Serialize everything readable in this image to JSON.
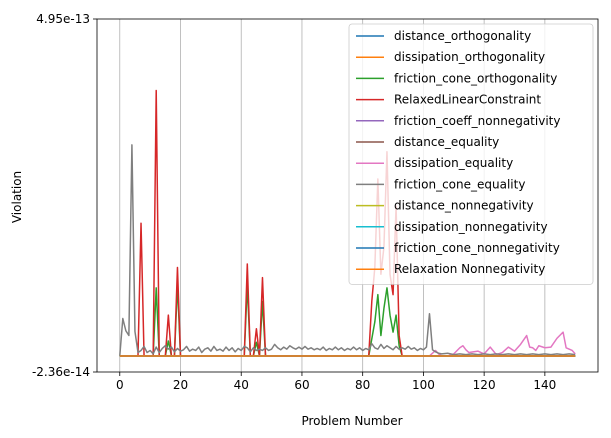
{
  "chart_data": {
    "type": "line",
    "title": "",
    "xlabel": "Problem Number",
    "ylabel": "Violation",
    "xlim": [
      -7.5,
      157.5
    ],
    "ylim": [
      -2.36e-14,
      4.95e-13
    ],
    "x_ticks": [
      0,
      20,
      40,
      60,
      80,
      100,
      120,
      140
    ],
    "y_ticks": [
      {
        "value": -2.36e-14,
        "label": "-2.36e-14"
      },
      {
        "value": 4.95e-13,
        "label": "4.95e-13"
      }
    ],
    "grid": "x-only",
    "legend_position": "top-right",
    "series": [
      {
        "name": "distance_orthogonality",
        "color": "#1f77b4",
        "points": [
          [
            0,
            0
          ],
          [
            150,
            0
          ]
        ]
      },
      {
        "name": "dissipation_orthogonality",
        "color": "#ff7f0e",
        "points": [
          [
            0,
            0
          ],
          [
            150,
            0
          ]
        ]
      },
      {
        "name": "friction_cone_orthogonality",
        "color": "#2ca02c",
        "points": [
          [
            0,
            0
          ],
          [
            11,
            0
          ],
          [
            12,
            1e-13
          ],
          [
            13,
            0
          ],
          [
            15,
            0
          ],
          [
            16,
            2.2e-14
          ],
          [
            17,
            0
          ],
          [
            18,
            0
          ],
          [
            19,
            1.05e-13
          ],
          [
            20,
            0
          ],
          [
            41,
            0
          ],
          [
            42,
            1.05e-13
          ],
          [
            43,
            0
          ],
          [
            44,
            0
          ],
          [
            45,
            2e-14
          ],
          [
            46,
            0
          ],
          [
            47,
            8e-14
          ],
          [
            48,
            0
          ],
          [
            82,
            0
          ],
          [
            83,
            2.5e-14
          ],
          [
            84,
            5e-14
          ],
          [
            85,
            9e-14
          ],
          [
            86,
            3e-14
          ],
          [
            87,
            7e-14
          ],
          [
            88,
            1e-13
          ],
          [
            89,
            6e-14
          ],
          [
            90,
            3.5e-14
          ],
          [
            91,
            6e-14
          ],
          [
            92,
            1.5e-14
          ],
          [
            93,
            0
          ],
          [
            150,
            0
          ]
        ]
      },
      {
        "name": "RelaxedLinearConstraint",
        "color": "#d62728",
        "points": [
          [
            0,
            0
          ],
          [
            6,
            0
          ],
          [
            7,
            1.95e-13
          ],
          [
            8,
            0
          ],
          [
            11,
            0
          ],
          [
            12,
            3.9e-13
          ],
          [
            13,
            0
          ],
          [
            15,
            0
          ],
          [
            16,
            6e-14
          ],
          [
            17,
            0
          ],
          [
            18,
            0
          ],
          [
            19,
            1.3e-13
          ],
          [
            20,
            0
          ],
          [
            41,
            0
          ],
          [
            42,
            1.35e-13
          ],
          [
            43,
            0
          ],
          [
            44,
            0
          ],
          [
            45,
            4e-14
          ],
          [
            46,
            0
          ],
          [
            47,
            1.15e-13
          ],
          [
            48,
            0
          ],
          [
            82,
            0
          ],
          [
            83,
            8e-14
          ],
          [
            84,
            1.3e-13
          ],
          [
            85,
            2.6e-13
          ],
          [
            86,
            1.2e-13
          ],
          [
            87,
            1.6e-13
          ],
          [
            88,
            3e-13
          ],
          [
            89,
            1.2e-13
          ],
          [
            90,
            9e-14
          ],
          [
            91,
            2.2e-13
          ],
          [
            92,
            3e-14
          ],
          [
            93,
            0
          ],
          [
            150,
            0
          ]
        ]
      },
      {
        "name": "friction_coeff_nonnegativity",
        "color": "#9467bd",
        "points": [
          [
            0,
            0
          ],
          [
            150,
            0
          ]
        ]
      },
      {
        "name": "distance_equality",
        "color": "#8c564b",
        "points": [
          [
            0,
            0
          ],
          [
            150,
            0
          ]
        ]
      },
      {
        "name": "dissipation_equality",
        "color": "#e377c2",
        "points": [
          [
            0,
            0
          ],
          [
            102,
            0
          ],
          [
            103,
            4e-15
          ],
          [
            104,
            8e-15
          ],
          [
            105,
            3e-15
          ],
          [
            106,
            0
          ],
          [
            108,
            0
          ],
          [
            110,
            3e-15
          ],
          [
            112,
            1.2e-14
          ],
          [
            113,
            1.5e-14
          ],
          [
            114,
            9e-15
          ],
          [
            115,
            5e-15
          ],
          [
            118,
            7e-15
          ],
          [
            120,
            3e-15
          ],
          [
            122,
            1.3e-14
          ],
          [
            124,
            2e-15
          ],
          [
            126,
            5e-15
          ],
          [
            128,
            1.3e-14
          ],
          [
            130,
            7e-15
          ],
          [
            132,
            1.7e-14
          ],
          [
            134,
            3e-14
          ],
          [
            135,
            1.3e-14
          ],
          [
            136,
            1.2e-14
          ],
          [
            137,
            8e-15
          ],
          [
            138,
            1.5e-14
          ],
          [
            140,
            1.2e-14
          ],
          [
            142,
            1.3e-14
          ],
          [
            144,
            2.6e-14
          ],
          [
            146,
            3.5e-14
          ],
          [
            147,
            1.2e-14
          ],
          [
            149,
            8e-15
          ],
          [
            150,
            3e-15
          ]
        ]
      },
      {
        "name": "friction_cone_equality",
        "color": "#7f7f7f",
        "points": [
          [
            0,
            0
          ],
          [
            1,
            5.5e-14
          ],
          [
            2,
            3.7e-14
          ],
          [
            3,
            3e-14
          ],
          [
            4,
            3.1e-13
          ],
          [
            5,
            3.6e-14
          ],
          [
            6,
            5e-15
          ],
          [
            7,
            8e-15
          ],
          [
            8,
            1.4e-14
          ],
          [
            9,
            5e-15
          ],
          [
            10,
            8e-15
          ],
          [
            11,
            3e-15
          ],
          [
            12,
            1.3e-14
          ],
          [
            13,
            5e-15
          ],
          [
            14,
            1.1e-14
          ],
          [
            15,
            1.5e-14
          ],
          [
            16,
            1e-14
          ],
          [
            17,
            1.3e-14
          ],
          [
            18,
            6e-15
          ],
          [
            19,
            1.1e-14
          ],
          [
            20,
            7e-15
          ],
          [
            21,
            9e-15
          ],
          [
            22,
            1.4e-14
          ],
          [
            23,
            7e-15
          ],
          [
            24,
            1e-14
          ],
          [
            25,
            8e-15
          ],
          [
            26,
            1.3e-14
          ],
          [
            27,
            5e-15
          ],
          [
            28,
            1e-14
          ],
          [
            29,
            1.2e-14
          ],
          [
            30,
            7e-15
          ],
          [
            31,
            1.4e-14
          ],
          [
            32,
            8e-15
          ],
          [
            33,
            1e-14
          ],
          [
            34,
            7e-15
          ],
          [
            35,
            1.3e-14
          ],
          [
            36,
            8e-15
          ],
          [
            37,
            1.2e-14
          ],
          [
            38,
            6e-15
          ],
          [
            39,
            1.1e-14
          ],
          [
            40,
            8e-15
          ],
          [
            41,
            1.4e-14
          ],
          [
            42,
            1.2e-14
          ],
          [
            43,
            6e-15
          ],
          [
            44,
            1.2e-14
          ],
          [
            45,
            8e-15
          ],
          [
            46,
            1e-14
          ],
          [
            47,
            8e-15
          ],
          [
            48,
            1.2e-14
          ],
          [
            49,
            8e-15
          ],
          [
            50,
            1e-14
          ],
          [
            51,
            1.7e-14
          ],
          [
            52,
            1.2e-14
          ],
          [
            53,
            9e-15
          ],
          [
            54,
            1.3e-14
          ],
          [
            55,
            1e-14
          ],
          [
            56,
            1.5e-14
          ],
          [
            57,
            1.2e-14
          ],
          [
            58,
            1e-14
          ],
          [
            59,
            1.3e-14
          ],
          [
            60,
            1e-14
          ],
          [
            61,
            1.4e-14
          ],
          [
            62,
            1e-14
          ],
          [
            63,
            1.2e-14
          ],
          [
            64,
            9e-15
          ],
          [
            65,
            1.1e-14
          ],
          [
            66,
            9e-15
          ],
          [
            67,
            1.3e-14
          ],
          [
            68,
            8e-15
          ],
          [
            69,
            1.1e-14
          ],
          [
            70,
            9e-15
          ],
          [
            71,
            1.3e-14
          ],
          [
            72,
            9e-15
          ],
          [
            73,
            1.2e-14
          ],
          [
            74,
            8e-15
          ],
          [
            75,
            1.1e-14
          ],
          [
            76,
            9e-15
          ],
          [
            77,
            1.3e-14
          ],
          [
            78,
            9e-15
          ],
          [
            79,
            1.2e-14
          ],
          [
            80,
            8e-15
          ],
          [
            81,
            1.1e-14
          ],
          [
            82,
            9e-15
          ],
          [
            83,
            1.8e-14
          ],
          [
            84,
            1.2e-14
          ],
          [
            85,
            1e-14
          ],
          [
            86,
            1.7e-14
          ],
          [
            87,
            1.1e-14
          ],
          [
            88,
            1.5e-14
          ],
          [
            89,
            1.2e-14
          ],
          [
            90,
            9e-15
          ],
          [
            91,
            1.4e-14
          ],
          [
            92,
            1e-14
          ],
          [
            93,
            1.2e-14
          ],
          [
            94,
            1e-14
          ],
          [
            95,
            1.4e-14
          ],
          [
            96,
            1e-14
          ],
          [
            97,
            1.2e-14
          ],
          [
            98,
            8e-15
          ],
          [
            99,
            1.1e-14
          ],
          [
            100,
            9e-15
          ],
          [
            101,
            1.3e-14
          ],
          [
            102,
            6.2e-14
          ],
          [
            103,
            9e-15
          ],
          [
            104,
            6e-15
          ],
          [
            105,
            4e-15
          ],
          [
            106,
            3e-15
          ],
          [
            108,
            4e-15
          ],
          [
            110,
            2e-15
          ],
          [
            112,
            3e-15
          ],
          [
            114,
            2e-15
          ],
          [
            116,
            3e-15
          ],
          [
            118,
            2e-15
          ],
          [
            120,
            3e-15
          ],
          [
            122,
            2e-15
          ],
          [
            124,
            3e-15
          ],
          [
            126,
            2e-15
          ],
          [
            128,
            3e-15
          ],
          [
            130,
            2e-15
          ],
          [
            132,
            3e-15
          ],
          [
            134,
            2e-15
          ],
          [
            136,
            3e-15
          ],
          [
            138,
            2e-15
          ],
          [
            140,
            3e-15
          ],
          [
            142,
            2e-15
          ],
          [
            144,
            3e-15
          ],
          [
            146,
            2e-15
          ],
          [
            148,
            3e-15
          ],
          [
            150,
            2e-15
          ]
        ]
      },
      {
        "name": "distance_nonnegativity",
        "color": "#bcbd22",
        "points": [
          [
            0,
            0
          ],
          [
            150,
            0
          ]
        ]
      },
      {
        "name": "dissipation_nonnegativity",
        "color": "#17becf",
        "points": [
          [
            0,
            0
          ],
          [
            150,
            0
          ]
        ]
      },
      {
        "name": "friction_cone_nonnegativity",
        "color": "#1f77b4",
        "points": [
          [
            0,
            0
          ],
          [
            150,
            0
          ]
        ]
      },
      {
        "name": "Relaxation Nonnegativity",
        "color": "#ff7f0e",
        "points": [
          [
            0,
            0
          ],
          [
            150,
            0
          ]
        ]
      }
    ]
  }
}
